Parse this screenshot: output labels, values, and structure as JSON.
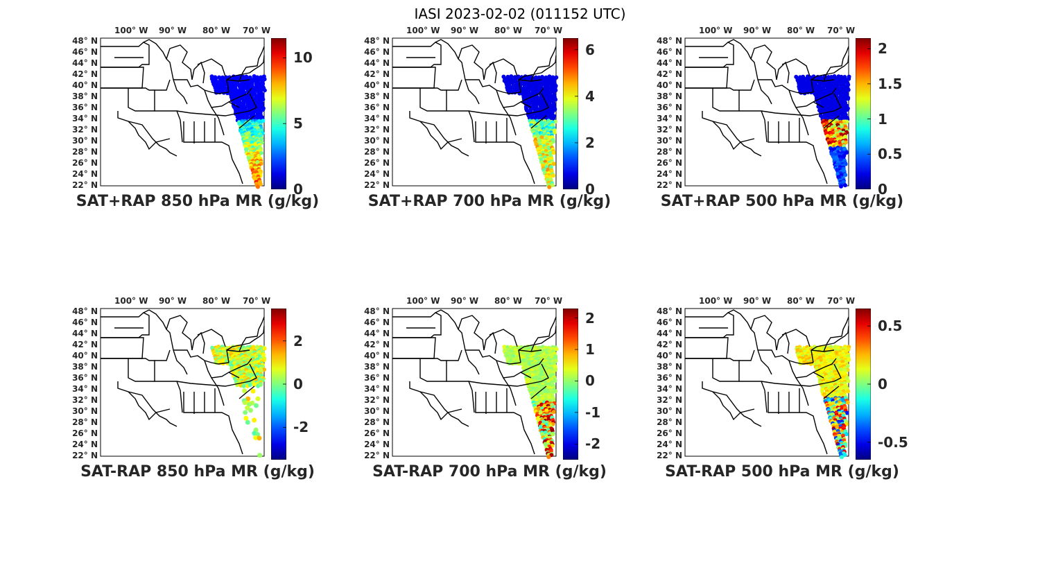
{
  "figure": {
    "title": "IASI 2023-02-02 (011152 UTC)"
  },
  "lon_ticks": [
    "100° W",
    "90° W",
    "80° W",
    "70° W"
  ],
  "lat_ticks": [
    "48° N",
    "46° N",
    "44° N",
    "42° N",
    "40° N",
    "38° N",
    "36° N",
    "34° N",
    "32° N",
    "30° N",
    "28° N",
    "26° N",
    "24° N",
    "22° N"
  ],
  "colormap": "jet",
  "panels": [
    {
      "title": "SAT+RAP 850 hPa MR (g/kg)",
      "clim": [
        0,
        11.5
      ],
      "ticks": [
        "10",
        "5",
        "0"
      ],
      "tick_values": [
        10,
        5,
        0
      ]
    },
    {
      "title": "SAT+RAP 700 hPa MR (g/kg)",
      "clim": [
        0,
        6.5
      ],
      "ticks": [
        "6",
        "4",
        "2",
        "0"
      ],
      "tick_values": [
        6,
        4,
        2,
        0
      ]
    },
    {
      "title": "SAT+RAP 500 hPa MR (g/kg)",
      "clim": [
        0,
        2.15
      ],
      "ticks": [
        "2",
        "1.5",
        "1",
        "0.5",
        "0"
      ],
      "tick_values": [
        2,
        1.5,
        1,
        0.5,
        0
      ]
    },
    {
      "title": "SAT-RAP 850 hPa MR (g/kg)",
      "clim": [
        -3.5,
        3.5
      ],
      "ticks": [
        "2",
        "0",
        "-2"
      ],
      "tick_values": [
        2,
        0,
        -2
      ]
    },
    {
      "title": "SAT-RAP 700 hPa MR (g/kg)",
      "clim": [
        -2.5,
        2.3
      ],
      "ticks": [
        "2",
        "1",
        "0",
        "-1",
        "-2"
      ],
      "tick_values": [
        2,
        1,
        0,
        -1,
        -2
      ]
    },
    {
      "title": "SAT-RAP 500 hPa MR (g/kg)",
      "clim": [
        -0.65,
        0.65
      ],
      "ticks": [
        "0.5",
        "0",
        "-0.5"
      ],
      "tick_values": [
        0.5,
        0,
        -0.5
      ]
    }
  ]
}
